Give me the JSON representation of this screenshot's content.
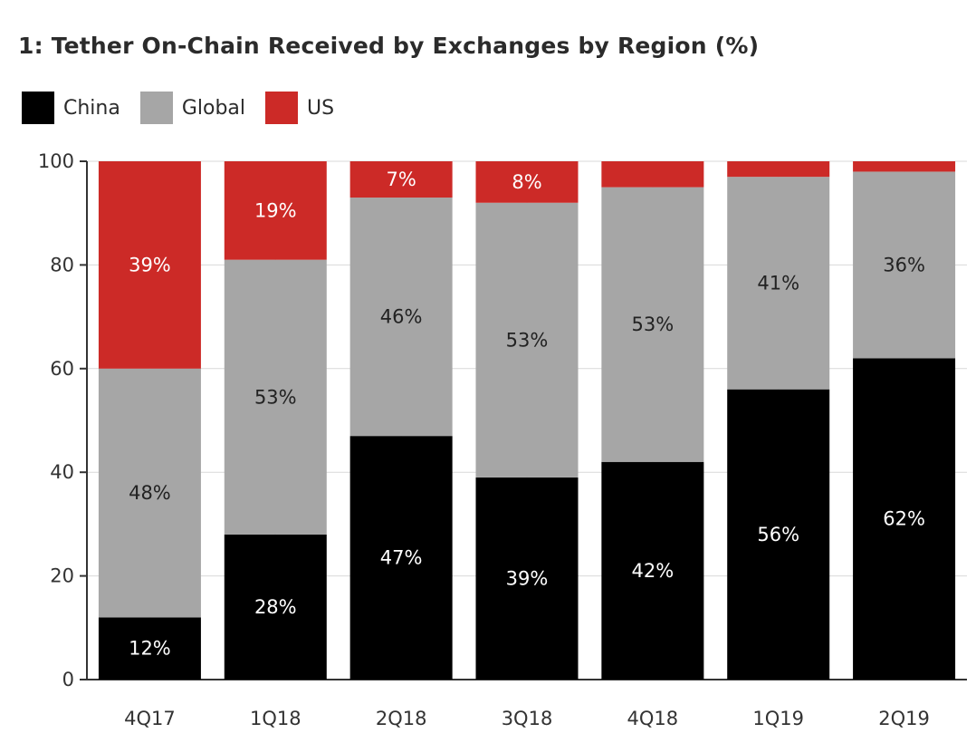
{
  "chart_data": {
    "type": "bar",
    "stacked": true,
    "title": "1: Tether On-Chain Received by Exchanges by Region (%)",
    "categories": [
      "4Q17",
      "1Q18",
      "2Q18",
      "3Q18",
      "4Q18",
      "1Q19",
      "2Q19"
    ],
    "series": [
      {
        "name": "China",
        "color": "#000000",
        "label_color": "#ffffff",
        "values": [
          12,
          28,
          47,
          39,
          42,
          56,
          62
        ],
        "labels": [
          "12%",
          "28%",
          "47%",
          "39%",
          "42%",
          "56%",
          "62%"
        ]
      },
      {
        "name": "Global",
        "color": "#a6a6a6",
        "label_color": "#222222",
        "values": [
          48,
          53,
          46,
          53,
          53,
          41,
          36
        ],
        "labels": [
          "48%",
          "53%",
          "46%",
          "53%",
          "53%",
          "41%",
          "36%"
        ]
      },
      {
        "name": "US",
        "color": "#cc2a27",
        "label_color": "#ffffff",
        "values": [
          39,
          19,
          7,
          8,
          5,
          3,
          3
        ],
        "labels": [
          "39%",
          "19%",
          "7%",
          "8%",
          "",
          "",
          ""
        ]
      }
    ],
    "ylim": [
      0,
      100
    ],
    "yticks": [
      0,
      20,
      40,
      60,
      80,
      100
    ],
    "xlabel": "",
    "ylabel": "",
    "legend_position": "top-left",
    "grid": true
  }
}
